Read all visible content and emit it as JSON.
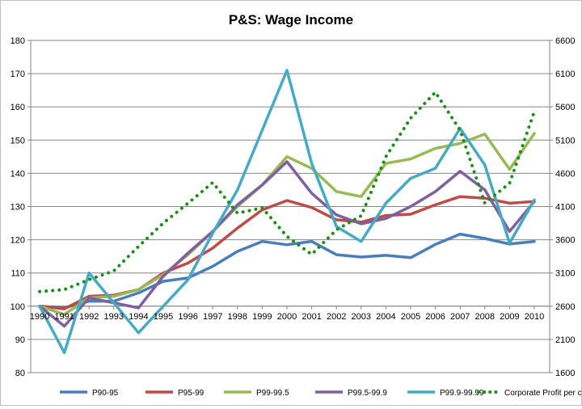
{
  "chart_data": {
    "type": "line",
    "title": "P&S: Wage Income",
    "xlabel": "",
    "ylabel": "",
    "x": [
      "1990",
      "1991",
      "1992",
      "1993",
      "1994",
      "1995",
      "1996",
      "1997",
      "1998",
      "1999",
      "2000",
      "2001",
      "2002",
      "2003",
      "2004",
      "2005",
      "2006",
      "2007",
      "2008",
      "2009",
      "2010"
    ],
    "ylim": [
      80,
      180
    ],
    "y_ticks": [
      80,
      90,
      100,
      110,
      120,
      130,
      140,
      150,
      160,
      170,
      180
    ],
    "y2lim": [
      1600,
      6600
    ],
    "y2_ticks": [
      1600,
      2100,
      2600,
      3100,
      3600,
      4100,
      4600,
      5100,
      5600,
      6100,
      6600
    ],
    "grid": "horizontal",
    "legend_position": "bottom",
    "series": [
      {
        "name": "P90-95",
        "axis": "left",
        "style": "solid",
        "color": "#4a7ebb",
        "values": [
          100,
          99.5,
          101.5,
          101.5,
          104,
          107.5,
          108.5,
          112,
          116.5,
          119.5,
          118.5,
          119.5,
          115.5,
          114.8,
          115.3,
          114.6,
          118.6,
          121.7,
          120.4,
          118.7,
          119.5
        ]
      },
      {
        "name": "P95-99",
        "axis": "left",
        "style": "solid",
        "color": "#be4b48",
        "values": [
          100,
          99.2,
          103,
          103.3,
          105,
          110,
          113,
          117.5,
          123.5,
          129,
          131.8,
          129.7,
          126,
          125.3,
          127.3,
          127.7,
          130.5,
          133,
          132.5,
          131,
          131.5
        ]
      },
      {
        "name": "P99-99.5",
        "axis": "left",
        "style": "solid",
        "color": "#98b954",
        "values": [
          100,
          97.5,
          102.5,
          103,
          105,
          109.5,
          115.5,
          122.5,
          130,
          136.5,
          145,
          141.5,
          134.5,
          133,
          143,
          144.3,
          147.5,
          149,
          151.8,
          141.2,
          152
        ]
      },
      {
        "name": "P99.5-99.9",
        "axis": "left",
        "style": "solid",
        "color": "#7d60a0",
        "values": [
          100,
          94,
          102.5,
          101,
          99.5,
          109,
          116,
          122.5,
          130.5,
          136.5,
          143.5,
          134,
          127.5,
          124.8,
          126.4,
          130,
          134.5,
          140.6,
          135,
          122.5,
          131.5
        ]
      },
      {
        "name": "P99.9-99.99",
        "axis": "left",
        "style": "solid",
        "color": "#46aac5",
        "values": [
          100,
          86,
          110,
          101,
          92,
          100,
          108,
          122,
          135,
          153,
          171,
          143,
          124,
          119.5,
          131,
          138.5,
          141.5,
          153.5,
          142.5,
          119,
          132
        ]
      },
      {
        "name": "Corporate Profit per capita",
        "axis": "right",
        "style": "dotted",
        "color": "#1e8c1e",
        "values": [
          2820,
          2850,
          3000,
          3130,
          3500,
          3850,
          4150,
          4460,
          4000,
          4080,
          3650,
          3380,
          3750,
          3960,
          4850,
          5430,
          5820,
          5250,
          4150,
          4450,
          5530
        ]
      }
    ]
  }
}
